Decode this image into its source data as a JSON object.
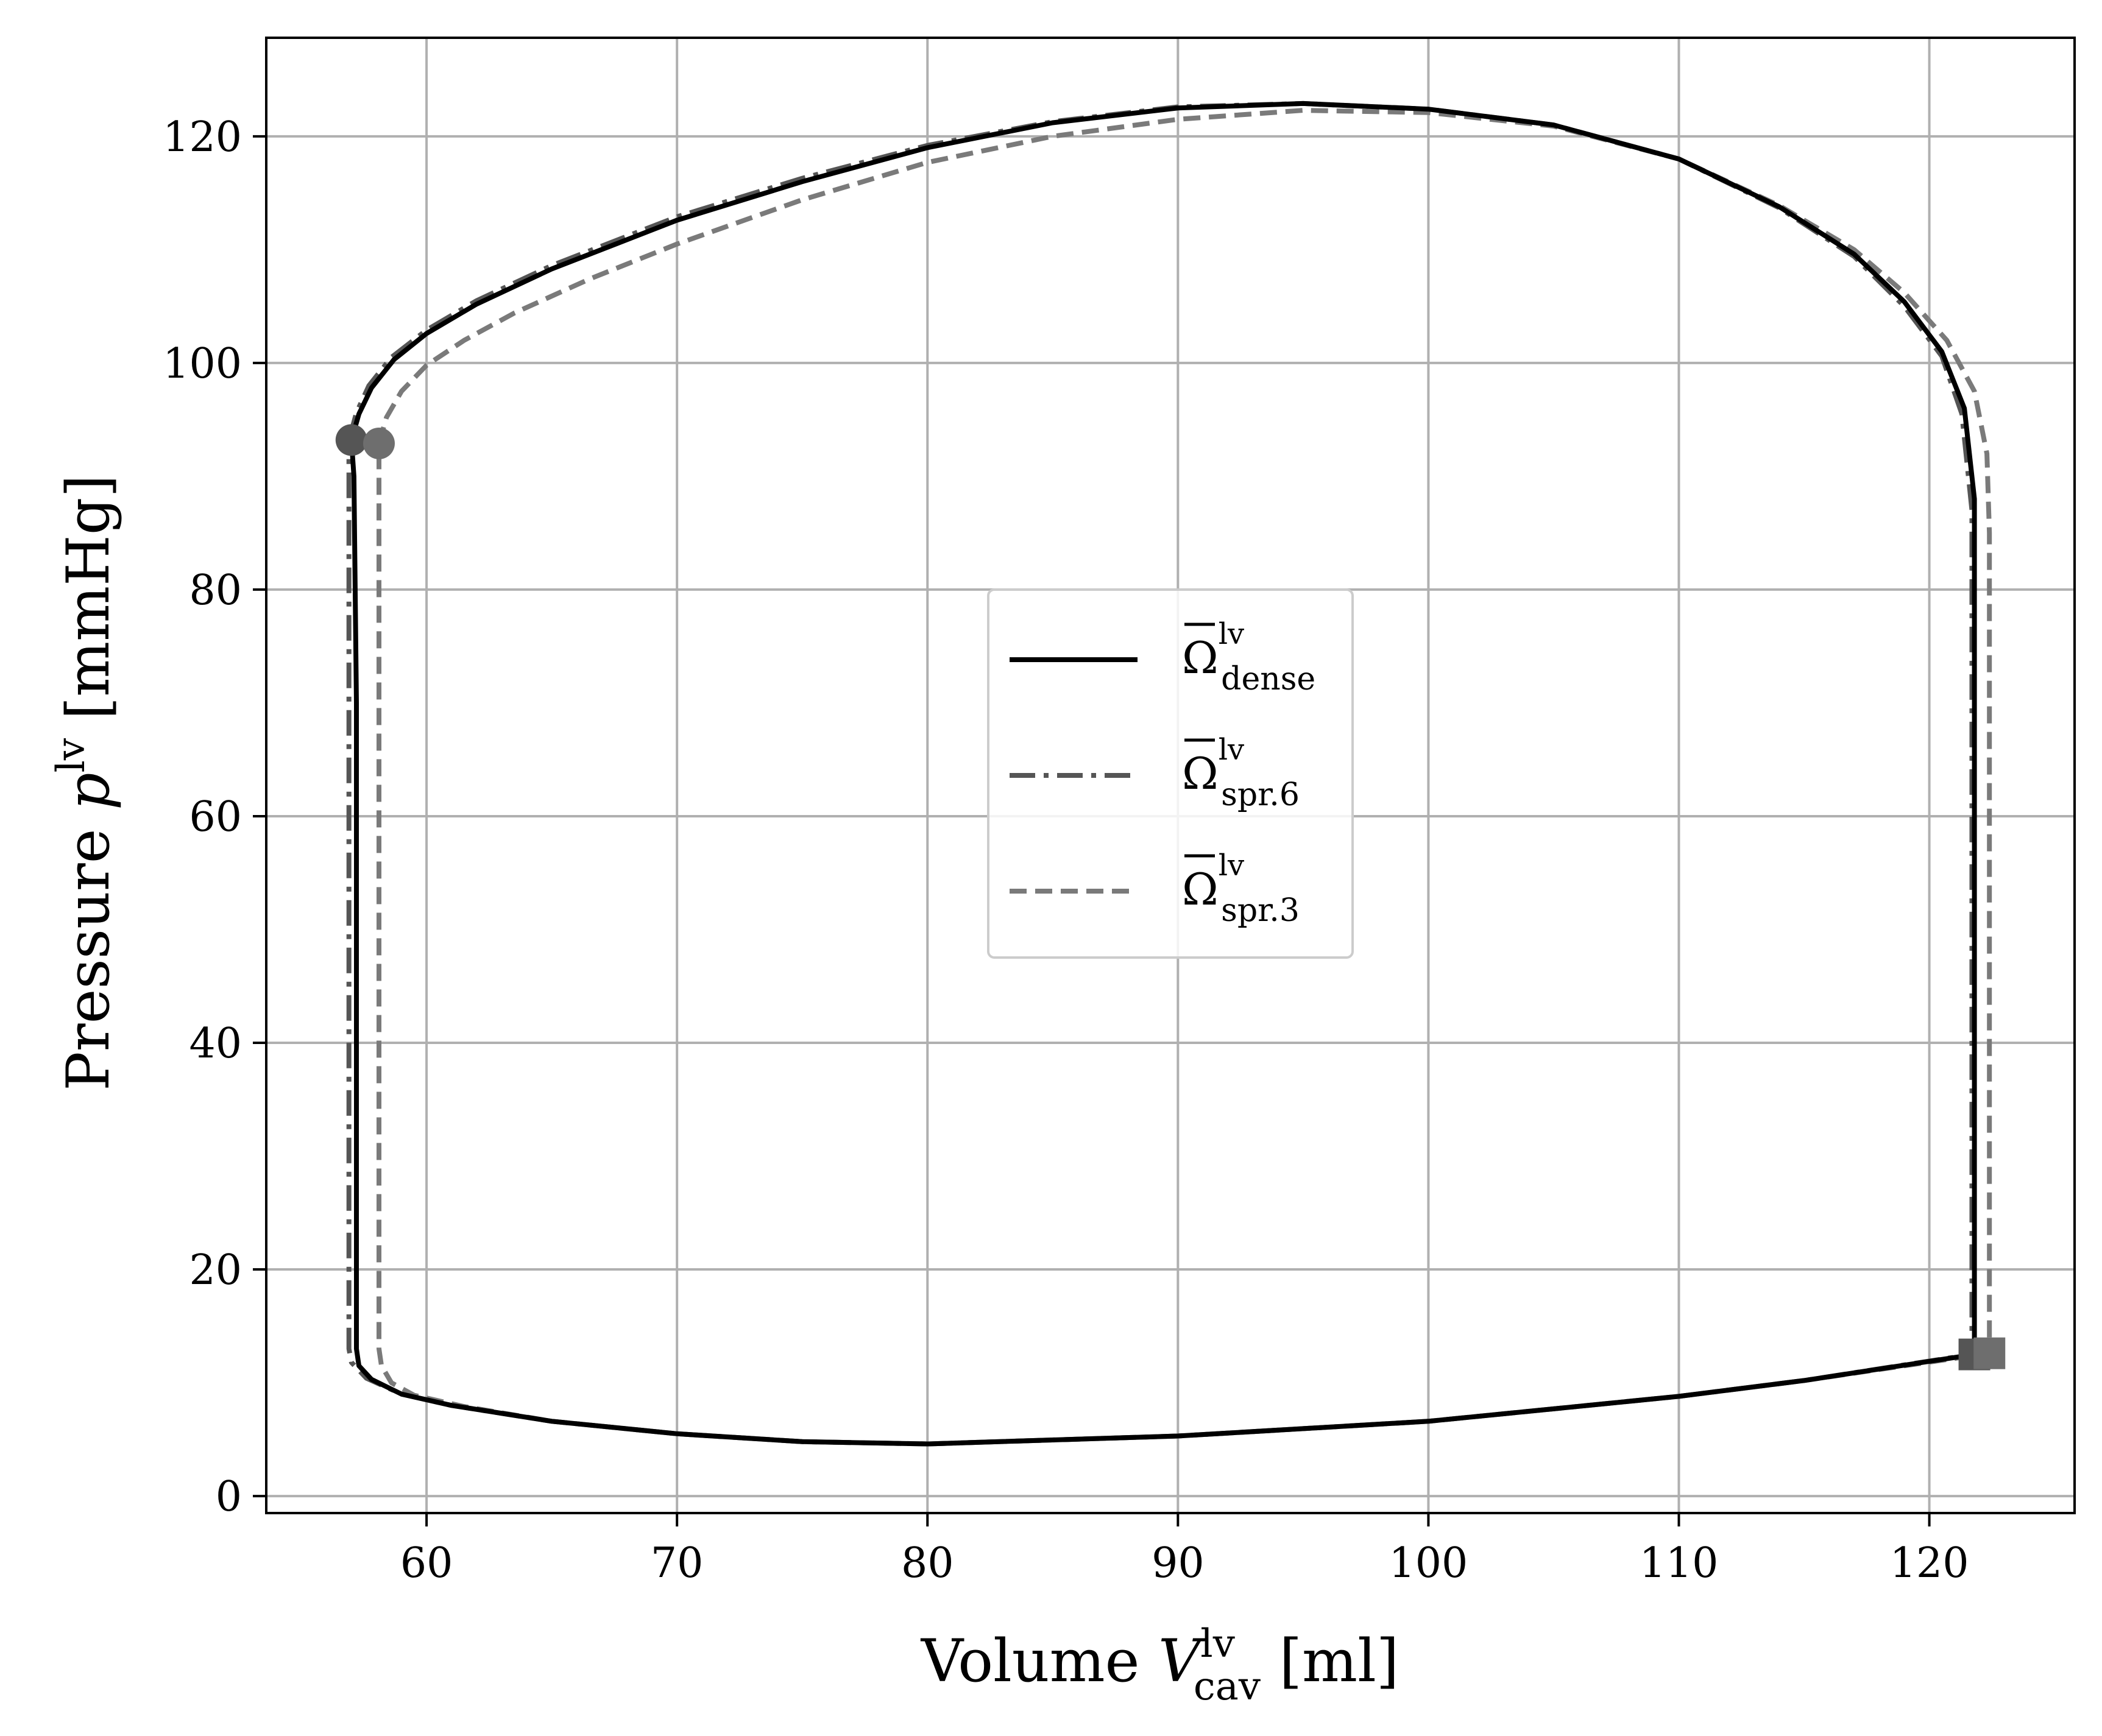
{
  "chart_data": {
    "type": "line",
    "title": "",
    "xlabel": {
      "text": "Volume ",
      "var": "V",
      "sup": "lv",
      "sub": "cav",
      "unit": " [ml]"
    },
    "ylabel": {
      "text": "Pressure ",
      "var": "p",
      "sup": "lv",
      "unit": " [mmHg]"
    },
    "xlim": [
      53.6,
      125.8
    ],
    "ylim": [
      -1.5,
      128.7
    ],
    "xticks": [
      60,
      70,
      80,
      90,
      100,
      110,
      120
    ],
    "yticks": [
      0,
      20,
      40,
      60,
      80,
      100,
      120
    ],
    "grid": true,
    "legend": {
      "position": "center"
    },
    "series": [
      {
        "name": "Ω̄ lv dense",
        "legend_symbol": "Ω",
        "legend_sup": "lv",
        "legend_sub": "dense",
        "color": "#000000",
        "style": "solid",
        "start_marker": {
          "type": "circle",
          "x": 57.0,
          "y": 93.2,
          "color": "#555555"
        },
        "end_marker": {
          "type": "square",
          "x": 121.8,
          "y": 12.5,
          "color": "#555555"
        },
        "points": [
          [
            57.0,
            93.2
          ],
          [
            57.3,
            95.5
          ],
          [
            57.8,
            97.8
          ],
          [
            58.7,
            100.3
          ],
          [
            60.0,
            102.6
          ],
          [
            62.0,
            105.2
          ],
          [
            65.0,
            108.3
          ],
          [
            70.0,
            112.6
          ],
          [
            75.0,
            116.0
          ],
          [
            80.0,
            119.0
          ],
          [
            85.0,
            121.2
          ],
          [
            90.0,
            122.5
          ],
          [
            95.0,
            122.9
          ],
          [
            100.0,
            122.4
          ],
          [
            105.0,
            121.0
          ],
          [
            110.0,
            118.0
          ],
          [
            114.0,
            113.8
          ],
          [
            117.0,
            109.6
          ],
          [
            119.0,
            105.4
          ],
          [
            120.5,
            101.0
          ],
          [
            121.4,
            96.0
          ],
          [
            121.8,
            88.0
          ],
          [
            121.8,
            60.0
          ],
          [
            121.8,
            30.0
          ],
          [
            121.8,
            12.5
          ],
          [
            115.0,
            10.2
          ],
          [
            110.0,
            8.8
          ],
          [
            100.0,
            6.6
          ],
          [
            90.0,
            5.3
          ],
          [
            80.0,
            4.6
          ],
          [
            75.0,
            4.8
          ],
          [
            70.0,
            5.5
          ],
          [
            65.0,
            6.6
          ],
          [
            61.0,
            8.0
          ],
          [
            59.0,
            9.0
          ],
          [
            57.8,
            10.3
          ],
          [
            57.3,
            11.5
          ],
          [
            57.2,
            13.0
          ],
          [
            57.2,
            40.0
          ],
          [
            57.2,
            70.0
          ],
          [
            57.1,
            90.0
          ],
          [
            57.0,
            93.2
          ]
        ]
      },
      {
        "name": "Ω̄ lv spr.6",
        "legend_symbol": "Ω",
        "legend_sup": "lv",
        "legend_sub": "spr.6",
        "color": "#555555",
        "style": "dashdot",
        "points": [
          [
            56.9,
            93.2
          ],
          [
            57.2,
            95.6
          ],
          [
            57.7,
            98.0
          ],
          [
            58.6,
            100.5
          ],
          [
            60.0,
            102.9
          ],
          [
            62.0,
            105.5
          ],
          [
            65.0,
            108.6
          ],
          [
            70.0,
            112.9
          ],
          [
            75.0,
            116.3
          ],
          [
            80.0,
            119.2
          ],
          [
            85.0,
            121.3
          ],
          [
            90.0,
            122.6
          ],
          [
            95.0,
            122.9
          ],
          [
            100.0,
            122.4
          ],
          [
            105.0,
            121.0
          ],
          [
            110.0,
            118.0
          ],
          [
            114.0,
            113.7
          ],
          [
            117.0,
            109.4
          ],
          [
            119.0,
            105.0
          ],
          [
            120.5,
            100.6
          ],
          [
            121.3,
            95.5
          ],
          [
            121.7,
            87.0
          ],
          [
            121.7,
            60.0
          ],
          [
            121.7,
            30.0
          ],
          [
            121.7,
            12.5
          ],
          [
            115.0,
            10.2
          ],
          [
            110.0,
            8.8
          ],
          [
            100.0,
            6.6
          ],
          [
            90.0,
            5.3
          ],
          [
            80.0,
            4.6
          ],
          [
            75.0,
            4.8
          ],
          [
            70.0,
            5.5
          ],
          [
            65.0,
            6.6
          ],
          [
            61.0,
            8.0
          ],
          [
            59.0,
            9.0
          ],
          [
            57.6,
            10.4
          ],
          [
            57.0,
            11.8
          ],
          [
            56.9,
            13.0
          ],
          [
            56.9,
            40.0
          ],
          [
            56.9,
            70.0
          ],
          [
            56.9,
            90.0
          ],
          [
            56.9,
            93.2
          ]
        ]
      },
      {
        "name": "Ω̄ lv spr.3",
        "legend_symbol": "Ω",
        "legend_sup": "lv",
        "legend_sub": "spr.3",
        "color": "#7a7a7a",
        "style": "dashed",
        "start_marker": {
          "type": "circle",
          "x": 58.1,
          "y": 92.9,
          "color": "#6e6e6e"
        },
        "end_marker": {
          "type": "square",
          "x": 122.4,
          "y": 12.6,
          "color": "#6e6e6e"
        },
        "points": [
          [
            58.1,
            92.9
          ],
          [
            58.4,
            95.2
          ],
          [
            59.0,
            97.5
          ],
          [
            60.0,
            99.8
          ],
          [
            61.5,
            102.0
          ],
          [
            63.5,
            104.4
          ],
          [
            66.5,
            107.4
          ],
          [
            70.0,
            110.5
          ],
          [
            75.0,
            114.4
          ],
          [
            80.0,
            117.7
          ],
          [
            85.0,
            120.0
          ],
          [
            90.0,
            121.5
          ],
          [
            95.0,
            122.3
          ],
          [
            100.0,
            122.1
          ],
          [
            105.0,
            120.9
          ],
          [
            110.0,
            118.0
          ],
          [
            114.0,
            113.9
          ],
          [
            117.0,
            110.0
          ],
          [
            119.0,
            106.2
          ],
          [
            120.7,
            102.0
          ],
          [
            121.8,
            97.5
          ],
          [
            122.3,
            92.0
          ],
          [
            122.4,
            85.0
          ],
          [
            122.4,
            60.0
          ],
          [
            122.4,
            30.0
          ],
          [
            122.4,
            12.6
          ],
          [
            115.0,
            10.2
          ],
          [
            110.0,
            8.8
          ],
          [
            100.0,
            6.6
          ],
          [
            90.0,
            5.3
          ],
          [
            80.0,
            4.6
          ],
          [
            75.0,
            4.8
          ],
          [
            70.0,
            5.5
          ],
          [
            65.0,
            6.6
          ],
          [
            61.5,
            7.9
          ],
          [
            59.5,
            8.9
          ],
          [
            58.6,
            10.0
          ],
          [
            58.2,
            11.5
          ],
          [
            58.1,
            13.0
          ],
          [
            58.1,
            40.0
          ],
          [
            58.1,
            70.0
          ],
          [
            58.1,
            90.0
          ],
          [
            58.1,
            92.9
          ]
        ]
      }
    ]
  }
}
